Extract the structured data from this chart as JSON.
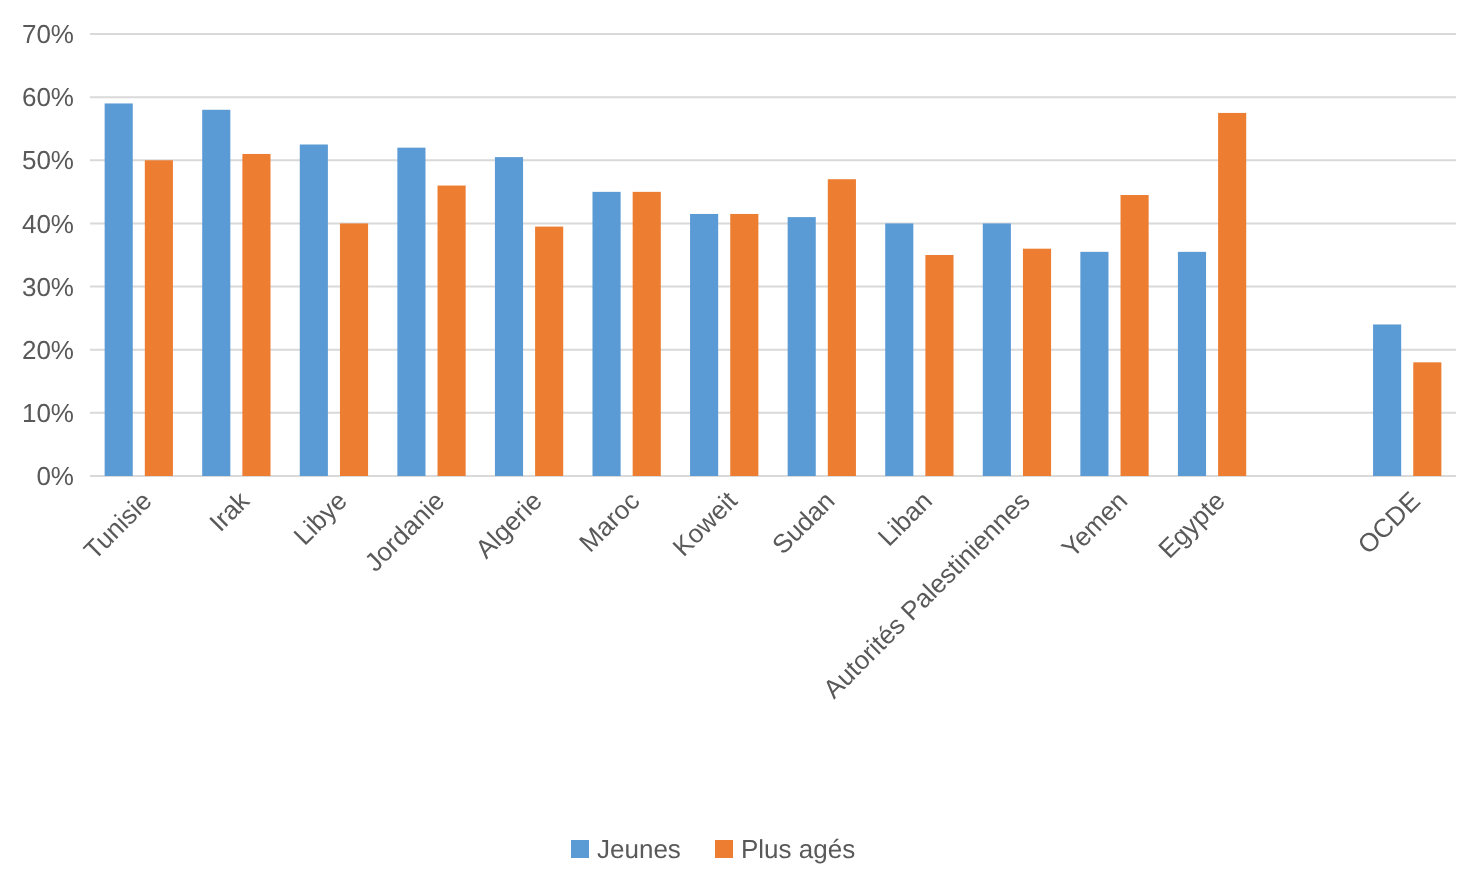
{
  "chart_data": {
    "type": "bar",
    "categories": [
      "Tunisie",
      "Irak",
      "Libye",
      "Jordanie",
      "Algerie",
      "Maroc",
      "Koweit",
      "Sudan",
      "Liban",
      "Autorités Palestiniennes",
      "Yemen",
      "Egypte",
      null,
      "OCDE"
    ],
    "series": [
      {
        "name": "Jeunes",
        "color": "#5b9bd5",
        "values": [
          59,
          58,
          52.5,
          52,
          50.5,
          45,
          41.5,
          41,
          40,
          40,
          35.5,
          35.5,
          null,
          24
        ]
      },
      {
        "name": "Plus agés",
        "color": "#ed7d31",
        "values": [
          50,
          51,
          40,
          46,
          39.5,
          45,
          41.5,
          47,
          35,
          36,
          44.5,
          57.5,
          null,
          18
        ]
      }
    ],
    "ylim": [
      0,
      70
    ],
    "yticks": [
      {
        "value": 0,
        "label": "0%"
      },
      {
        "value": 10,
        "label": "10%"
      },
      {
        "value": 20,
        "label": "20%"
      },
      {
        "value": 30,
        "label": "30%"
      },
      {
        "value": 40,
        "label": "40%"
      },
      {
        "value": 50,
        "label": "50%"
      },
      {
        "value": 60,
        "label": "60%"
      },
      {
        "value": 70,
        "label": "70%"
      }
    ],
    "grid": "y",
    "legend": "bottom"
  }
}
